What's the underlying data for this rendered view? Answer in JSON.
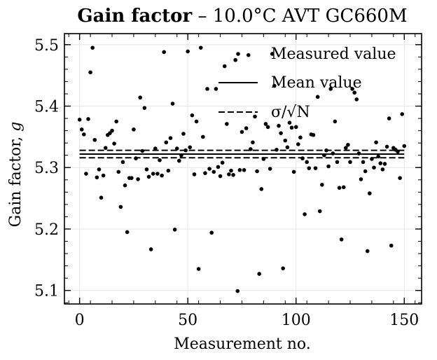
{
  "chart_data": {
    "type": "scatter",
    "title_bold": "Gain factor",
    "title_rest": " – 10.0°C AVT GC660M",
    "xlabel": "Measurement no.",
    "ylabel_text": "Gain factor, ",
    "ylabel_var": "g",
    "xlim": [
      -7,
      158
    ],
    "ylim": [
      5.078,
      5.518
    ],
    "xticks": [
      0,
      50,
      100,
      150
    ],
    "xtick_labels": [
      "0",
      "50",
      "100",
      "150"
    ],
    "yticks": [
      5.1,
      5.2,
      5.3,
      5.4,
      5.5
    ],
    "ytick_labels": [
      "5.1",
      "5.2",
      "5.3",
      "5.4",
      "5.5"
    ],
    "grid": true,
    "legend_position": "top-right",
    "legend": [
      {
        "label": "Measured value",
        "marker": "dot"
      },
      {
        "label": "Mean value",
        "marker": "solid-line"
      },
      {
        "label": "σ/√N",
        "marker": "dashed-line"
      }
    ],
    "mean": 5.322,
    "sigma_band": [
      5.316,
      5.328
    ],
    "series": [
      {
        "name": "Measured value",
        "x": [
          0,
          1,
          2,
          3,
          4,
          5,
          6,
          7,
          8,
          9,
          10,
          11,
          12,
          13,
          14,
          15,
          16,
          17,
          18,
          19,
          20,
          21,
          22,
          23,
          24,
          25,
          26,
          27,
          28,
          29,
          30,
          31,
          32,
          33,
          34,
          35,
          36,
          37,
          38,
          39,
          40,
          41,
          42,
          43,
          44,
          45,
          46,
          47,
          48,
          49,
          50,
          51,
          52,
          53,
          54,
          55,
          56,
          57,
          58,
          59,
          60,
          61,
          62,
          63,
          64,
          65,
          66,
          67,
          68,
          69,
          70,
          71,
          72,
          73,
          74,
          75,
          76,
          77,
          78,
          79,
          80,
          81,
          82,
          83,
          84,
          85,
          86,
          87,
          88,
          89,
          90,
          91,
          92,
          93,
          94,
          95,
          96,
          97,
          98,
          99,
          100,
          101,
          102,
          103,
          104,
          105,
          106,
          107,
          108,
          109,
          110,
          111,
          112,
          113,
          114,
          115,
          116,
          117,
          118,
          119,
          120,
          121,
          122,
          123,
          124,
          125,
          126,
          127,
          128,
          129,
          130,
          131,
          132,
          133,
          134,
          135,
          136,
          137,
          138,
          139,
          140,
          141,
          142,
          143,
          144,
          145,
          146,
          147,
          148,
          149,
          150
        ],
        "y": [
          5.378,
          5.362,
          5.354,
          5.29,
          5.379,
          5.455,
          5.495,
          5.345,
          5.284,
          5.297,
          5.251,
          5.287,
          5.332,
          5.353,
          5.356,
          5.36,
          5.339,
          5.375,
          5.293,
          5.236,
          5.309,
          5.271,
          5.195,
          5.283,
          5.283,
          5.362,
          5.315,
          5.281,
          5.414,
          5.327,
          5.397,
          5.297,
          5.285,
          5.167,
          5.29,
          5.331,
          5.29,
          5.312,
          5.287,
          5.488,
          5.341,
          5.295,
          5.348,
          5.404,
          5.199,
          5.331,
          5.311,
          5.32,
          5.355,
          5.328,
          5.489,
          5.333,
          5.385,
          5.289,
          5.375,
          5.135,
          5.495,
          5.35,
          5.291,
          5.428,
          5.298,
          5.194,
          5.293,
          5.428,
          5.301,
          5.286,
          5.308,
          5.465,
          5.371,
          5.289,
          5.295,
          5.288,
          5.475,
          5.099,
          5.296,
          5.358,
          5.296,
          5.364,
          5.483,
          5.33,
          5.341,
          5.383,
          5.294,
          5.127,
          5.265,
          5.314,
          5.371,
          5.366,
          5.298,
          5.485,
          5.433,
          5.329,
          5.368,
          5.356,
          5.136,
          5.344,
          5.333,
          5.373,
          5.365,
          5.293,
          5.366,
          5.338,
          5.349,
          5.315,
          5.224,
          5.309,
          5.299,
          5.354,
          5.353,
          5.299,
          5.415,
          5.229,
          5.272,
          5.32,
          5.328,
          5.302,
          5.428,
          5.323,
          5.375,
          5.309,
          5.267,
          5.183,
          5.268,
          5.332,
          5.337,
          5.309,
          5.428,
          5.422,
          5.411,
          5.323,
          5.281,
          5.309,
          5.294,
          5.164,
          5.258,
          5.314,
          5.3,
          5.341,
          5.318,
          5.307,
          5.297,
          5.306,
          5.334,
          5.38,
          5.173,
          5.332,
          5.329,
          5.326,
          5.283,
          5.387,
          5.335
        ]
      }
    ]
  }
}
